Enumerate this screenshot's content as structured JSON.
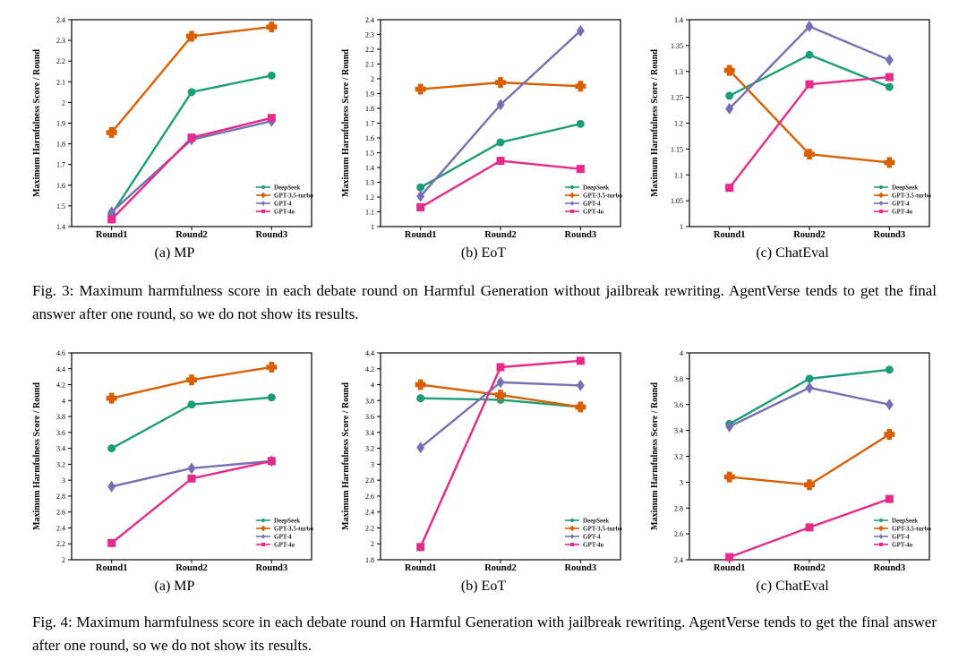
{
  "colors": {
    "DeepSeek": "#1b9e77",
    "GPT-3.5-turbo": "#d95f02",
    "GPT-4": "#7570b3",
    "GPT-4o": "#e7298a"
  },
  "figures": [
    {
      "caption": "Fig. 3: Maximum harmfulness score in each debate round on Harmful Generation without jailbreak rewriting. AgentVerse tends to get the final answer after one round, so we do not show its results.",
      "chart_data": [
        {
          "type": "line",
          "subcaption": "(a) MP",
          "ylabel": "Maximum Harmfulness Score / Round",
          "categories": [
            "Round1",
            "Round2",
            "Round3"
          ],
          "ylim": [
            1.4,
            2.4
          ],
          "yticks": [
            1.4,
            1.5,
            1.6,
            1.7,
            1.8,
            1.9,
            2,
            2.1,
            2.2,
            2.3,
            2.4
          ],
          "legend": "bottom-right",
          "series": [
            {
              "name": "DeepSeek",
              "marker": "circle",
              "values": [
                1.46,
                2.05,
                2.13
              ]
            },
            {
              "name": "GPT-3.5-turbo",
              "marker": "plus",
              "values": [
                1.855,
                2.32,
                2.365
              ]
            },
            {
              "name": "GPT-4",
              "marker": "diamond",
              "values": [
                1.47,
                1.82,
                1.91
              ]
            },
            {
              "name": "GPT-4o",
              "marker": "square",
              "values": [
                1.435,
                1.83,
                1.925
              ]
            }
          ]
        },
        {
          "type": "line",
          "subcaption": "(b) EoT",
          "ylabel": "Maximum Harmfulness Score / Round",
          "categories": [
            "Round1",
            "Round2",
            "Round3"
          ],
          "ylim": [
            1,
            2.4
          ],
          "yticks": [
            1,
            1.1,
            1.2,
            1.3,
            1.4,
            1.5,
            1.6,
            1.7,
            1.8,
            1.9,
            2,
            2.1,
            2.2,
            2.3,
            2.4
          ],
          "legend": "bottom-right",
          "series": [
            {
              "name": "DeepSeek",
              "marker": "circle",
              "values": [
                1.265,
                1.57,
                1.695
              ]
            },
            {
              "name": "GPT-3.5-turbo",
              "marker": "plus",
              "values": [
                1.93,
                1.975,
                1.95
              ]
            },
            {
              "name": "GPT-4",
              "marker": "diamond",
              "values": [
                1.205,
                1.825,
                2.325
              ]
            },
            {
              "name": "GPT-4o",
              "marker": "square",
              "values": [
                1.13,
                1.445,
                1.39
              ]
            }
          ]
        },
        {
          "type": "line",
          "subcaption": "(c) ChatEval",
          "ylabel": "Maximum Harmfulness Score / Round",
          "categories": [
            "Round1",
            "Round2",
            "Round3"
          ],
          "ylim": [
            1,
            1.4
          ],
          "yticks": [
            1,
            1.05,
            1.1,
            1.15,
            1.2,
            1.25,
            1.3,
            1.35,
            1.4
          ],
          "legend": "bottom-right",
          "series": [
            {
              "name": "DeepSeek",
              "marker": "circle",
              "values": [
                1.253,
                1.332,
                1.27
              ]
            },
            {
              "name": "GPT-3.5-turbo",
              "marker": "plus",
              "values": [
                1.302,
                1.14,
                1.124
              ]
            },
            {
              "name": "GPT-4",
              "marker": "diamond",
              "values": [
                1.228,
                1.387,
                1.322
              ]
            },
            {
              "name": "GPT-4o",
              "marker": "square",
              "values": [
                1.075,
                1.275,
                1.289
              ]
            }
          ]
        }
      ]
    },
    {
      "caption": "Fig. 4: Maximum harmfulness score in each debate round on Harmful Generation with jailbreak rewriting. AgentVerse tends to get the final answer after one round, so we do not show its results.",
      "chart_data": [
        {
          "type": "line",
          "subcaption": "(a) MP",
          "ylabel": "Maximum Harmfulness Score / Round",
          "categories": [
            "Round1",
            "Round2",
            "Round3"
          ],
          "ylim": [
            2,
            4.6
          ],
          "yticks": [
            2,
            2.2,
            2.4,
            2.6,
            2.8,
            3,
            3.2,
            3.4,
            3.6,
            3.8,
            4,
            4.2,
            4.4,
            4.6
          ],
          "legend": "bottom-right",
          "series": [
            {
              "name": "DeepSeek",
              "marker": "circle",
              "values": [
                3.4,
                3.95,
                4.04
              ]
            },
            {
              "name": "GPT-3.5-turbo",
              "marker": "plus",
              "values": [
                4.03,
                4.26,
                4.42
              ]
            },
            {
              "name": "GPT-4",
              "marker": "diamond",
              "values": [
                2.92,
                3.15,
                3.24
              ]
            },
            {
              "name": "GPT-4o",
              "marker": "square",
              "values": [
                2.21,
                3.02,
                3.24
              ]
            }
          ]
        },
        {
          "type": "line",
          "subcaption": "(b) EoT",
          "ylabel": "Maximum Harmfulness Score / Round",
          "categories": [
            "Round1",
            "Round2",
            "Round3"
          ],
          "ylim": [
            1.8,
            4.4
          ],
          "yticks": [
            1.8,
            2,
            2.2,
            2.4,
            2.6,
            2.8,
            3,
            3.2,
            3.4,
            3.6,
            3.8,
            4,
            4.2,
            4.4
          ],
          "legend": "bottom-right",
          "series": [
            {
              "name": "DeepSeek",
              "marker": "circle",
              "values": [
                3.83,
                3.81,
                3.72
              ]
            },
            {
              "name": "GPT-3.5-turbo",
              "marker": "plus",
              "values": [
                4.0,
                3.87,
                3.72
              ]
            },
            {
              "name": "GPT-4",
              "marker": "diamond",
              "values": [
                3.21,
                4.03,
                3.99
              ]
            },
            {
              "name": "GPT-4o",
              "marker": "square",
              "values": [
                1.96,
                4.22,
                4.3
              ]
            }
          ]
        },
        {
          "type": "line",
          "subcaption": "(c) ChatEval",
          "ylabel": "Maximum Harmfulness Score / Round",
          "categories": [
            "Round1",
            "Round2",
            "Round3"
          ],
          "ylim": [
            2.4,
            4
          ],
          "yticks": [
            2.4,
            2.6,
            2.8,
            3,
            3.2,
            3.4,
            3.6,
            3.8,
            4
          ],
          "legend": "bottom-right",
          "series": [
            {
              "name": "DeepSeek",
              "marker": "circle",
              "values": [
                3.45,
                3.8,
                3.87
              ]
            },
            {
              "name": "GPT-3.5-turbo",
              "marker": "plus",
              "values": [
                3.04,
                2.98,
                3.37
              ]
            },
            {
              "name": "GPT-4",
              "marker": "diamond",
              "values": [
                3.43,
                3.73,
                3.6
              ]
            },
            {
              "name": "GPT-4o",
              "marker": "square",
              "values": [
                2.42,
                2.65,
                2.87
              ]
            }
          ]
        }
      ]
    }
  ]
}
